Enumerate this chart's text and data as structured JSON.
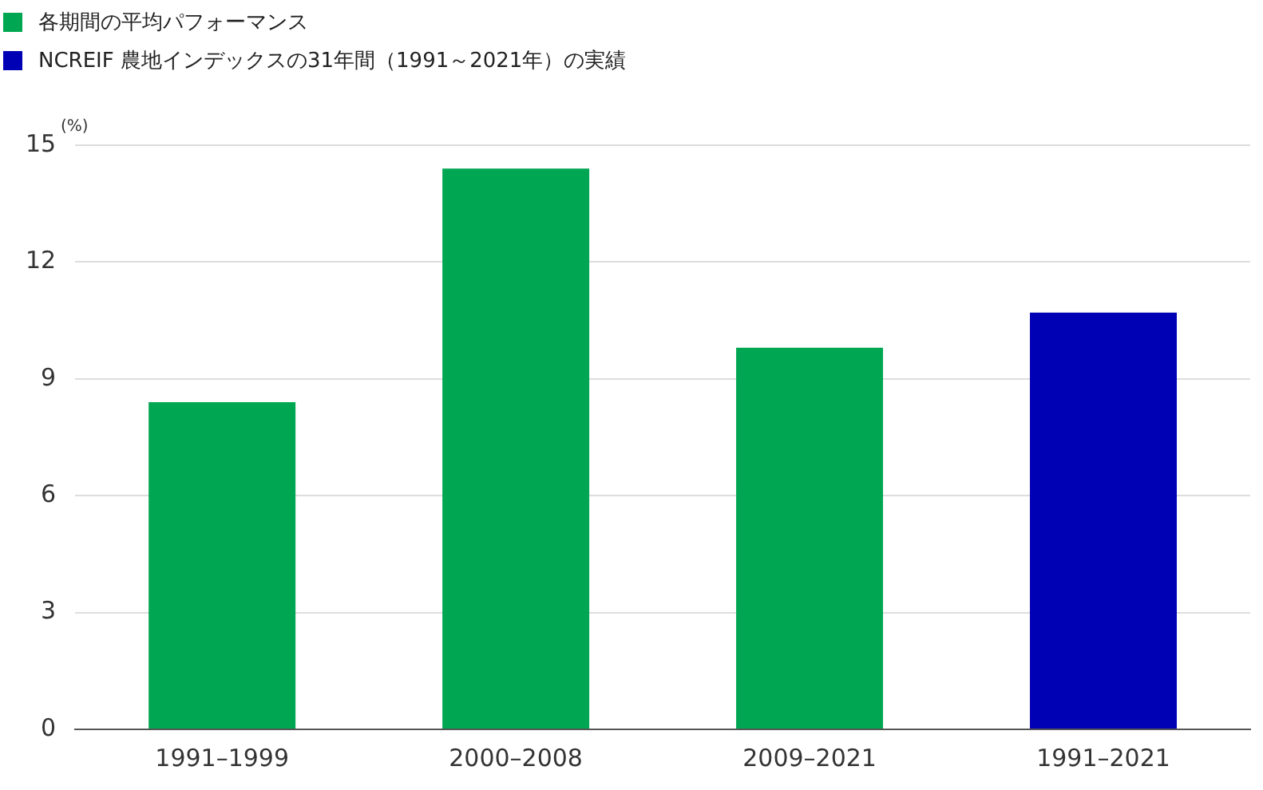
{
  "chart_data": {
    "type": "bar",
    "ylabel": "(%)",
    "categories": [
      "1991–1999",
      "2000–2008",
      "2009–2021",
      "1991–2021"
    ],
    "series": [
      {
        "name": "各期間の平均パフォーマンス",
        "color": "#00a651",
        "values": [
          8.4,
          14.4,
          9.8,
          null
        ]
      },
      {
        "name": "NCREIF 農地インデックスの31年間（1991～2021年）の実績",
        "color": "#0000b4",
        "values": [
          null,
          null,
          null,
          10.7
        ]
      }
    ],
    "ylim": [
      0,
      15
    ],
    "yticks": [
      0,
      3,
      6,
      9,
      12,
      15
    ],
    "grid": "y",
    "legend": "top left"
  }
}
